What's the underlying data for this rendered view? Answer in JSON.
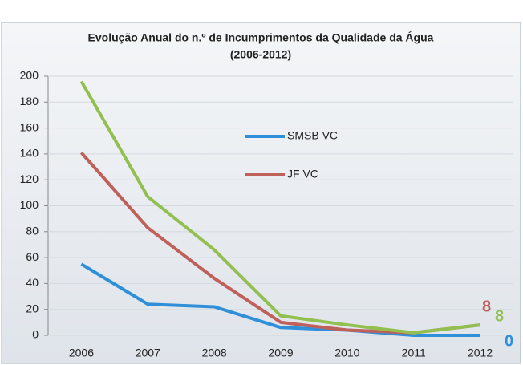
{
  "chart_data": {
    "type": "line",
    "title": "Evolução Anual do n.º de Incumprimentos da Qualidade da Água",
    "subtitle": "(2006-2012)",
    "categories": [
      "2006",
      "2007",
      "2008",
      "2009",
      "2010",
      "2011",
      "2012"
    ],
    "series": [
      {
        "name": "SMSB VC",
        "color": "#2f8fd8",
        "values": [
          55,
          24,
          22,
          6,
          4,
          0,
          0
        ]
      },
      {
        "name": "JF VC",
        "color": "#c0605a",
        "values": [
          141,
          83,
          44,
          10,
          4,
          2,
          8
        ]
      },
      {
        "color": "#92c050",
        "values": [
          196,
          107,
          66,
          15,
          8,
          2,
          8
        ]
      }
    ],
    "ylim": [
      0,
      200
    ],
    "yticks": [
      0,
      20,
      40,
      60,
      80,
      100,
      120,
      140,
      160,
      180,
      200
    ],
    "grid": true,
    "end_labels": true
  }
}
